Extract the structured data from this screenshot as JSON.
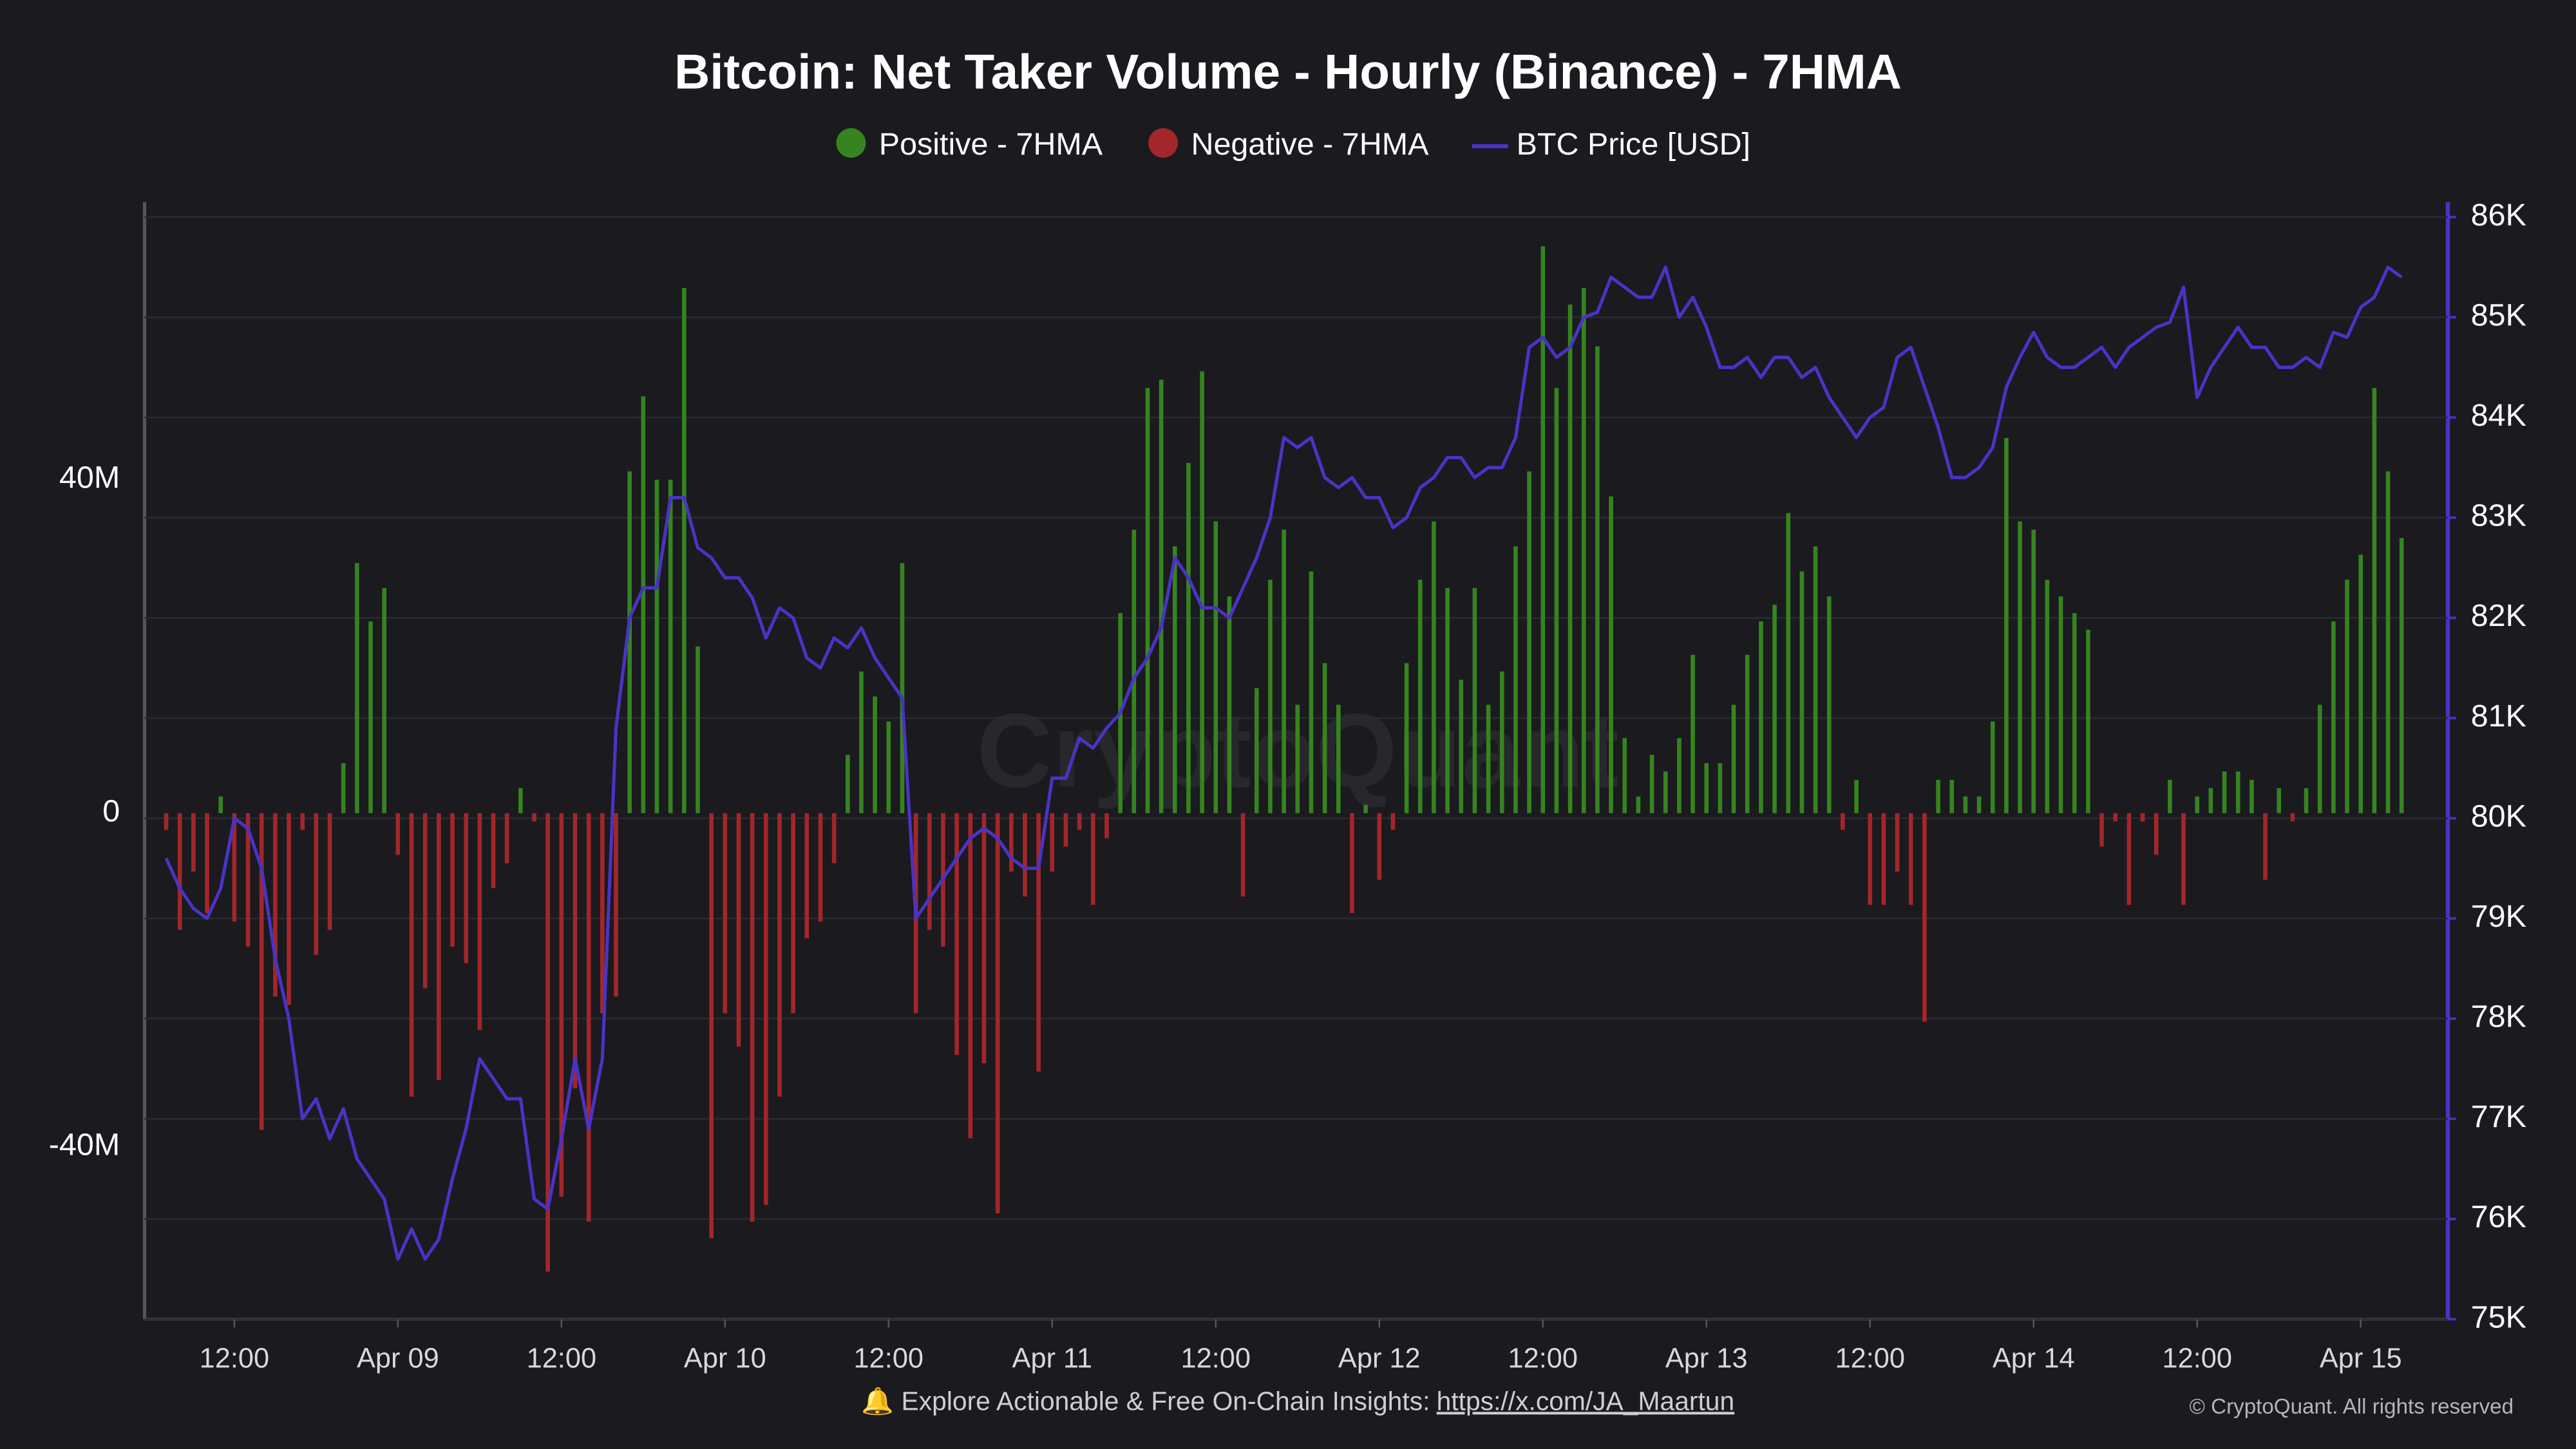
{
  "chart_data": {
    "type": "bar",
    "title": "Bitcoin: Net Taker Volume - Hourly (Binance) - 7HMA",
    "watermark": "CryptoQuant",
    "footer": {
      "text": "🔔 Explore Actionable & Free On-Chain Insights:",
      "link": "https://x.com/JA_Maartun",
      "copyright": "© CryptoQuant. All rights reserved"
    },
    "categories": [
      "Apr 08 07:00",
      "Apr 08 08:00",
      "Apr 08 09:00",
      "Apr 08 10:00",
      "Apr 08 11:00",
      "Apr 08 12:00",
      "Apr 08 13:00",
      "Apr 08 14:00",
      "Apr 08 15:00",
      "Apr 08 16:00",
      "Apr 08 17:00",
      "Apr 08 18:00",
      "Apr 08 19:00",
      "Apr 08 20:00",
      "Apr 08 21:00",
      "Apr 08 22:00",
      "Apr 08 23:00",
      "Apr 09 00:00",
      "Apr 09 01:00",
      "Apr 09 02:00",
      "Apr 09 03:00",
      "Apr 09 04:00",
      "Apr 09 05:00",
      "Apr 09 06:00",
      "Apr 09 07:00",
      "Apr 09 08:00",
      "Apr 09 09:00",
      "Apr 09 10:00",
      "Apr 09 11:00",
      "Apr 09 12:00",
      "Apr 09 13:00",
      "Apr 09 14:00",
      "Apr 09 15:00",
      "Apr 09 16:00",
      "Apr 09 17:00",
      "Apr 09 18:00",
      "Apr 09 19:00",
      "Apr 09 20:00",
      "Apr 09 21:00",
      "Apr 09 22:00",
      "Apr 09 23:00",
      "Apr 10 00:00",
      "Apr 10 01:00",
      "Apr 10 02:00",
      "Apr 10 03:00",
      "Apr 10 04:00",
      "Apr 10 05:00",
      "Apr 10 06:00",
      "Apr 10 07:00",
      "Apr 10 08:00",
      "Apr 10 09:00",
      "Apr 10 10:00",
      "Apr 10 11:00",
      "Apr 10 12:00",
      "Apr 10 13:00",
      "Apr 10 14:00",
      "Apr 10 15:00",
      "Apr 10 16:00",
      "Apr 10 17:00",
      "Apr 10 18:00",
      "Apr 10 19:00",
      "Apr 10 20:00",
      "Apr 10 21:00",
      "Apr 10 22:00",
      "Apr 10 23:00",
      "Apr 11 00:00",
      "Apr 11 01:00",
      "Apr 11 02:00",
      "Apr 11 03:00",
      "Apr 11 04:00",
      "Apr 11 05:00",
      "Apr 11 06:00",
      "Apr 11 07:00",
      "Apr 11 08:00",
      "Apr 11 09:00",
      "Apr 11 10:00",
      "Apr 11 11:00",
      "Apr 11 12:00",
      "Apr 11 13:00",
      "Apr 11 14:00",
      "Apr 11 15:00",
      "Apr 11 16:00",
      "Apr 11 17:00",
      "Apr 11 18:00",
      "Apr 11 19:00",
      "Apr 11 20:00",
      "Apr 11 21:00",
      "Apr 11 22:00",
      "Apr 11 23:00",
      "Apr 12 00:00",
      "Apr 12 01:00",
      "Apr 12 02:00",
      "Apr 12 03:00",
      "Apr 12 04:00",
      "Apr 12 05:00",
      "Apr 12 06:00",
      "Apr 12 07:00",
      "Apr 12 08:00",
      "Apr 12 09:00",
      "Apr 12 10:00",
      "Apr 12 11:00",
      "Apr 12 12:00",
      "Apr 12 13:00",
      "Apr 12 14:00",
      "Apr 12 15:00",
      "Apr 12 16:00",
      "Apr 12 17:00",
      "Apr 12 18:00",
      "Apr 12 19:00",
      "Apr 12 20:00",
      "Apr 12 21:00",
      "Apr 12 22:00",
      "Apr 12 23:00",
      "Apr 13 00:00",
      "Apr 13 01:00",
      "Apr 13 02:00",
      "Apr 13 03:00",
      "Apr 13 04:00",
      "Apr 13 05:00",
      "Apr 13 06:00",
      "Apr 13 07:00",
      "Apr 13 08:00",
      "Apr 13 09:00",
      "Apr 13 10:00",
      "Apr 13 11:00",
      "Apr 13 12:00",
      "Apr 13 13:00",
      "Apr 13 14:00",
      "Apr 13 15:00",
      "Apr 13 16:00",
      "Apr 13 17:00",
      "Apr 13 18:00",
      "Apr 13 19:00",
      "Apr 13 20:00",
      "Apr 13 21:00",
      "Apr 13 22:00",
      "Apr 13 23:00",
      "Apr 14 00:00",
      "Apr 14 01:00",
      "Apr 14 02:00",
      "Apr 14 03:00",
      "Apr 14 04:00",
      "Apr 14 05:00",
      "Apr 14 06:00",
      "Apr 14 07:00",
      "Apr 14 08:00",
      "Apr 14 09:00",
      "Apr 14 10:00",
      "Apr 14 11:00",
      "Apr 14 12:00",
      "Apr 14 13:00",
      "Apr 14 14:00",
      "Apr 14 15:00",
      "Apr 14 16:00",
      "Apr 14 17:00",
      "Apr 14 18:00",
      "Apr 14 19:00",
      "Apr 14 20:00",
      "Apr 14 21:00",
      "Apr 14 22:00",
      "Apr 14 23:00",
      "Apr 15 00:00",
      "Apr 15 01:00",
      "Apr 15 02:00",
      "Apr 15 03:00"
    ],
    "xticks": [
      {
        "value": "Apr 08 12:00",
        "label": "12:00"
      },
      {
        "value": "Apr 09 00:00",
        "label": "Apr 09"
      },
      {
        "value": "Apr 09 12:00",
        "label": "12:00"
      },
      {
        "value": "Apr 10 00:00",
        "label": "Apr 10"
      },
      {
        "value": "Apr 10 12:00",
        "label": "12:00"
      },
      {
        "value": "Apr 11 00:00",
        "label": "Apr 11"
      },
      {
        "value": "Apr 11 12:00",
        "label": "12:00"
      },
      {
        "value": "Apr 12 00:00",
        "label": "Apr 12"
      },
      {
        "value": "Apr 12 12:00",
        "label": "12:00"
      },
      {
        "value": "Apr 13 00:00",
        "label": "Apr 13"
      },
      {
        "value": "Apr 13 12:00",
        "label": "12:00"
      },
      {
        "value": "Apr 14 00:00",
        "label": "Apr 14"
      },
      {
        "value": "Apr 14 12:00",
        "label": "12:00"
      },
      {
        "value": "Apr 15 00:00",
        "label": "Apr 15"
      }
    ],
    "ylim": [
      -60700000,
      73300000
    ],
    "yticks": [
      {
        "value": -40000000,
        "label": "-40M"
      },
      0,
      {
        "value": 40000000,
        "label": "40M"
      }
    ],
    "y2lim": [
      75000,
      86150
    ],
    "y2ticks": [
      {
        "value": 75000,
        "label": "75K"
      },
      {
        "value": 76000,
        "label": "76K"
      },
      {
        "value": 77000,
        "label": "77K"
      },
      {
        "value": 78000,
        "label": "78K"
      },
      {
        "value": 79000,
        "label": "79K"
      },
      {
        "value": 80000,
        "label": "80K"
      },
      {
        "value": 81000,
        "label": "81K"
      },
      {
        "value": 82000,
        "label": "82K"
      },
      {
        "value": 83000,
        "label": "83K"
      },
      {
        "value": 84000,
        "label": "84K"
      },
      {
        "value": 85000,
        "label": "85K"
      },
      {
        "value": 86000,
        "label": "86K"
      }
    ],
    "grid": true,
    "series": [
      {
        "name": "Positive - 7HMA",
        "color": "#35841f",
        "values": [
          null,
          null,
          null,
          null,
          2000000,
          null,
          null,
          null,
          null,
          null,
          null,
          null,
          null,
          6000000,
          30000000,
          23000000,
          27000000,
          null,
          null,
          null,
          null,
          null,
          null,
          null,
          null,
          null,
          3000000,
          null,
          null,
          null,
          null,
          null,
          null,
          null,
          41000000,
          50000000,
          40000000,
          40000000,
          63000000,
          20000000,
          null,
          null,
          null,
          null,
          null,
          null,
          null,
          null,
          null,
          null,
          7000000,
          17000000,
          14000000,
          11000000,
          30000000,
          null,
          null,
          null,
          null,
          null,
          null,
          null,
          null,
          null,
          null,
          null,
          null,
          null,
          null,
          null,
          24000000,
          34000000,
          51000000,
          52000000,
          32000000,
          42000000,
          53000000,
          35000000,
          26000000,
          null,
          15000000,
          28000000,
          34000000,
          13000000,
          29000000,
          18000000,
          13000000,
          null,
          1000000,
          null,
          null,
          18000000,
          28000000,
          35000000,
          27000000,
          16000000,
          27000000,
          13000000,
          17000000,
          32000000,
          41000000,
          68000000,
          51000000,
          61000000,
          63000000,
          56000000,
          38000000,
          9000000,
          2000000,
          7000000,
          5000000,
          9000000,
          19000000,
          6000000,
          6000000,
          13000000,
          19000000,
          23000000,
          25000000,
          36000000,
          29000000,
          32000000,
          26000000,
          null,
          4000000,
          null,
          null,
          null,
          null,
          null,
          4000000,
          4000000,
          2000000,
          2000000,
          11000000,
          45000000,
          35000000,
          34000000,
          28000000,
          26000000,
          24000000,
          22000000,
          null,
          null,
          null,
          null,
          null,
          4000000,
          null,
          2000000,
          3000000,
          5000000,
          5000000,
          4000000,
          null,
          3000000,
          null,
          3000000,
          13000000,
          23000000,
          28000000,
          31000000,
          51000000,
          41000000,
          33000000
        ]
      },
      {
        "name": "Negative - 7HMA",
        "color": "#a3262a",
        "values": [
          -2000000,
          -14000000,
          -7000000,
          -12000000,
          null,
          -13000000,
          -16000000,
          -38000000,
          -22000000,
          -23000000,
          -2000000,
          -17000000,
          -14000000,
          null,
          null,
          null,
          null,
          -5000000,
          -34000000,
          -21000000,
          -32000000,
          -16000000,
          -18000000,
          -26000000,
          -9000000,
          -6000000,
          null,
          -1000000,
          -55000000,
          -46000000,
          -33000000,
          -49000000,
          -24000000,
          -22000000,
          null,
          null,
          null,
          null,
          null,
          null,
          -51000000,
          -24000000,
          -28000000,
          -49000000,
          -47000000,
          -34000000,
          -24000000,
          -15000000,
          -13000000,
          -6000000,
          null,
          null,
          null,
          null,
          null,
          -24000000,
          -14000000,
          -16000000,
          -29000000,
          -39000000,
          -30000000,
          -48000000,
          -7000000,
          -10000000,
          -31000000,
          -7000000,
          -4000000,
          -2000000,
          -11000000,
          -3000000,
          null,
          null,
          null,
          null,
          null,
          null,
          null,
          null,
          null,
          -10000000,
          null,
          null,
          null,
          null,
          null,
          null,
          null,
          -12000000,
          null,
          -8000000,
          -2000000,
          null,
          null,
          null,
          null,
          null,
          null,
          null,
          null,
          null,
          null,
          null,
          null,
          null,
          null,
          null,
          null,
          null,
          null,
          null,
          null,
          null,
          null,
          null,
          null,
          null,
          null,
          null,
          null,
          null,
          null,
          null,
          null,
          -2000000,
          null,
          -11000000,
          -11000000,
          -7000000,
          -11000000,
          -25000000,
          null,
          null,
          null,
          null,
          null,
          null,
          null,
          null,
          null,
          null,
          null,
          null,
          -4000000,
          -1000000,
          -11000000,
          -1000000,
          -5000000,
          null,
          -11000000,
          null,
          null,
          null,
          null,
          null,
          -8000000,
          null,
          -1000000,
          null,
          null,
          null,
          null,
          null,
          null,
          null,
          null
        ]
      },
      {
        "name": "BTC Price [USD]",
        "color": "#4a33c4",
        "type": "line",
        "axis": "y2",
        "values": [
          79600,
          79300,
          79100,
          79000,
          79300,
          80000,
          79900,
          79500,
          78600,
          78000,
          77000,
          77200,
          76800,
          77100,
          76600,
          76400,
          76200,
          75600,
          75900,
          75600,
          75800,
          76400,
          76900,
          77600,
          77400,
          77200,
          77200,
          76200,
          76100,
          76800,
          77600,
          76900,
          77600,
          80900,
          82000,
          82300,
          82300,
          83200,
          83200,
          82700,
          82600,
          82400,
          82400,
          82200,
          81800,
          82100,
          82000,
          81600,
          81500,
          81800,
          81700,
          81900,
          81600,
          81400,
          81200,
          79000,
          79200,
          79400,
          79600,
          79800,
          79900,
          79800,
          79600,
          79500,
          79500,
          80400,
          80400,
          80800,
          80700,
          80900,
          81050,
          81400,
          81600,
          81900,
          82600,
          82400,
          82100,
          82100,
          82000,
          82300,
          82600,
          83000,
          83800,
          83700,
          83800,
          83400,
          83300,
          83400,
          83200,
          83200,
          82900,
          83000,
          83300,
          83400,
          83600,
          83600,
          83400,
          83500,
          83500,
          83800,
          84700,
          84800,
          84600,
          84700,
          85000,
          85050,
          85400,
          85300,
          85200,
          85200,
          85500,
          85000,
          85200,
          84900,
          84500,
          84500,
          84600,
          84400,
          84600,
          84600,
          84400,
          84500,
          84200,
          84000,
          83800,
          84000,
          84100,
          84600,
          84700,
          84300,
          83900,
          83400,
          83400,
          83500,
          83700,
          84300,
          84600,
          84850,
          84600,
          84500,
          84500,
          84600,
          84700,
          84500,
          84700,
          84800,
          84900,
          84950,
          85300,
          84200,
          84500,
          84700,
          84900,
          84700,
          84700,
          84500,
          84500,
          84600,
          84500,
          84850,
          84800,
          85100,
          85200,
          85500,
          85400
        ]
      }
    ]
  }
}
